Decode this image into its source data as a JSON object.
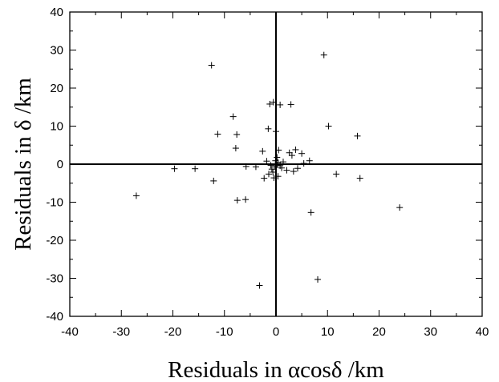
{
  "chart_data": {
    "type": "scatter",
    "marker": "+",
    "xlabel": "Residuals in αcosδ /km",
    "ylabel": "Residuals in δ /km",
    "xlim": [
      -40,
      40
    ],
    "ylim": [
      -40,
      40
    ],
    "major_ticks": [
      -40,
      -30,
      -20,
      -10,
      0,
      10,
      20,
      30,
      40
    ],
    "minor_ticks": [
      -35,
      -25,
      -15,
      -5,
      5,
      15,
      25,
      35
    ],
    "xticklabels": [
      "-40",
      "-30",
      "-20",
      "-10",
      "0",
      "10",
      "20",
      "30",
      "40"
    ],
    "yticklabels": [
      "-40",
      "-30",
      "-20",
      "-10",
      "0",
      "10",
      "20",
      "30",
      "40"
    ],
    "zero_lines": true,
    "grid": false,
    "points": [
      [
        -12.5,
        26
      ],
      [
        9.3,
        28.7
      ],
      [
        -0.5,
        16.3
      ],
      [
        -1.2,
        15.8
      ],
      [
        0.8,
        15.6
      ],
      [
        2.9,
        15.7
      ],
      [
        -8.3,
        12.5
      ],
      [
        -11.3,
        7.9
      ],
      [
        -7.6,
        7.8
      ],
      [
        -7.8,
        4.2
      ],
      [
        10.2,
        10
      ],
      [
        15.8,
        7.4
      ],
      [
        -1.5,
        9.3
      ],
      [
        0,
        8.6
      ],
      [
        -2.6,
        3.4
      ],
      [
        0.5,
        3.7
      ],
      [
        2.6,
        3
      ],
      [
        3.1,
        2.3
      ],
      [
        3.8,
        3.8
      ],
      [
        5,
        2.8
      ],
      [
        6.5,
        0.9
      ],
      [
        -1.8,
        0.8
      ],
      [
        -1.0,
        -0.3
      ],
      [
        -0.8,
        -1.3
      ],
      [
        -0.3,
        -0.7
      ],
      [
        -0.1,
        0.9
      ],
      [
        0.2,
        1.8
      ],
      [
        0.3,
        -0.2
      ],
      [
        0.4,
        0.5
      ],
      [
        0.8,
        -0.4
      ],
      [
        1.1,
        -1.0
      ],
      [
        1.4,
        0.6
      ],
      [
        2.1,
        -1.6
      ],
      [
        3.4,
        -1.9
      ],
      [
        4.2,
        -1.1
      ],
      [
        5.4,
        0.2
      ],
      [
        -0.6,
        -2.1
      ],
      [
        -1.4,
        -2.6
      ],
      [
        -2.3,
        -3.7
      ],
      [
        -0.4,
        -3.6
      ],
      [
        0.4,
        -3.2
      ],
      [
        -3.9,
        -0.7
      ],
      [
        -5.8,
        -0.6
      ],
      [
        -15.7,
        -1.2
      ],
      [
        -19.7,
        -1.2
      ],
      [
        -12.1,
        -4.4
      ],
      [
        -27.1,
        -8.3
      ],
      [
        -7.5,
        -9.5
      ],
      [
        -5.9,
        -9.3
      ],
      [
        11.7,
        -2.6
      ],
      [
        16.3,
        -3.7
      ],
      [
        6.8,
        -12.7
      ],
      [
        24,
        -11.4
      ],
      [
        -3.2,
        -31.9
      ],
      [
        8.1,
        -30.3
      ]
    ]
  }
}
